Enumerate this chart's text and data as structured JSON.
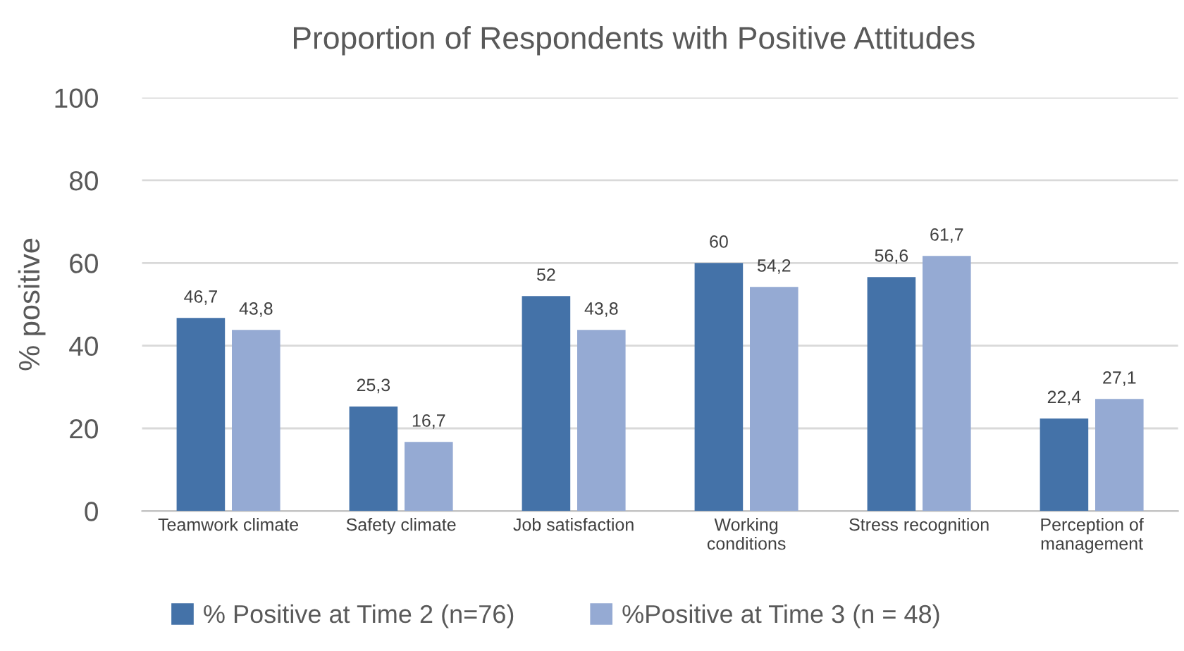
{
  "chart_data": {
    "type": "bar",
    "title": "Proportion of Respondents with Positive Attitudes",
    "ylabel": "% positive",
    "categories": [
      "Teamwork climate",
      "Safety climate",
      "Job satisfaction",
      "Working\nconditions",
      "Stress recognition",
      "Perception of\nmanagement"
    ],
    "series": [
      {
        "name": "% Positive at Time 2 (n=76)",
        "color": "#4472a8",
        "values": [
          46.7,
          25.3,
          52,
          60,
          56.6,
          22.4
        ],
        "value_labels": [
          "46,7",
          "25,3",
          "52",
          "60",
          "56,6",
          "22,4"
        ]
      },
      {
        "name": "%Positive at Time 3 (n = 48)",
        "color": "#95aad3",
        "values": [
          43.8,
          16.7,
          43.8,
          54.2,
          61.7,
          27.1
        ],
        "value_labels": [
          "43,8",
          "16,7",
          "43,8",
          "54,2",
          "61,7",
          "27,1"
        ]
      }
    ],
    "ylim": [
      0,
      100
    ],
    "yticks": [
      0,
      20,
      40,
      60,
      80,
      100
    ],
    "grid": "y",
    "legend": "bottom"
  }
}
